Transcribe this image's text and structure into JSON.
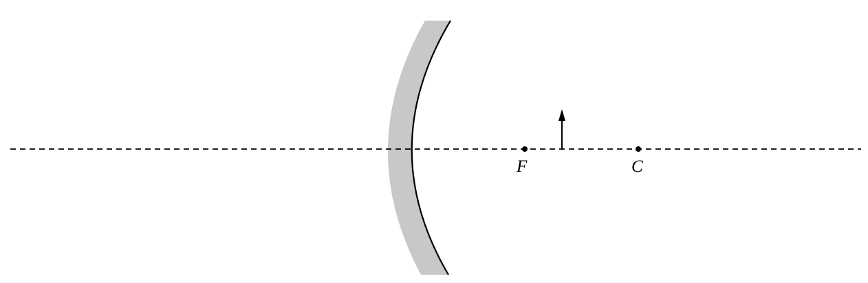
{
  "labels": {
    "focal_point": "F",
    "center_of_curvature": "C"
  },
  "colors": {
    "mirror_backing": "#c8c8c8",
    "line": "#000000"
  },
  "mirror": {
    "type": "concave"
  }
}
